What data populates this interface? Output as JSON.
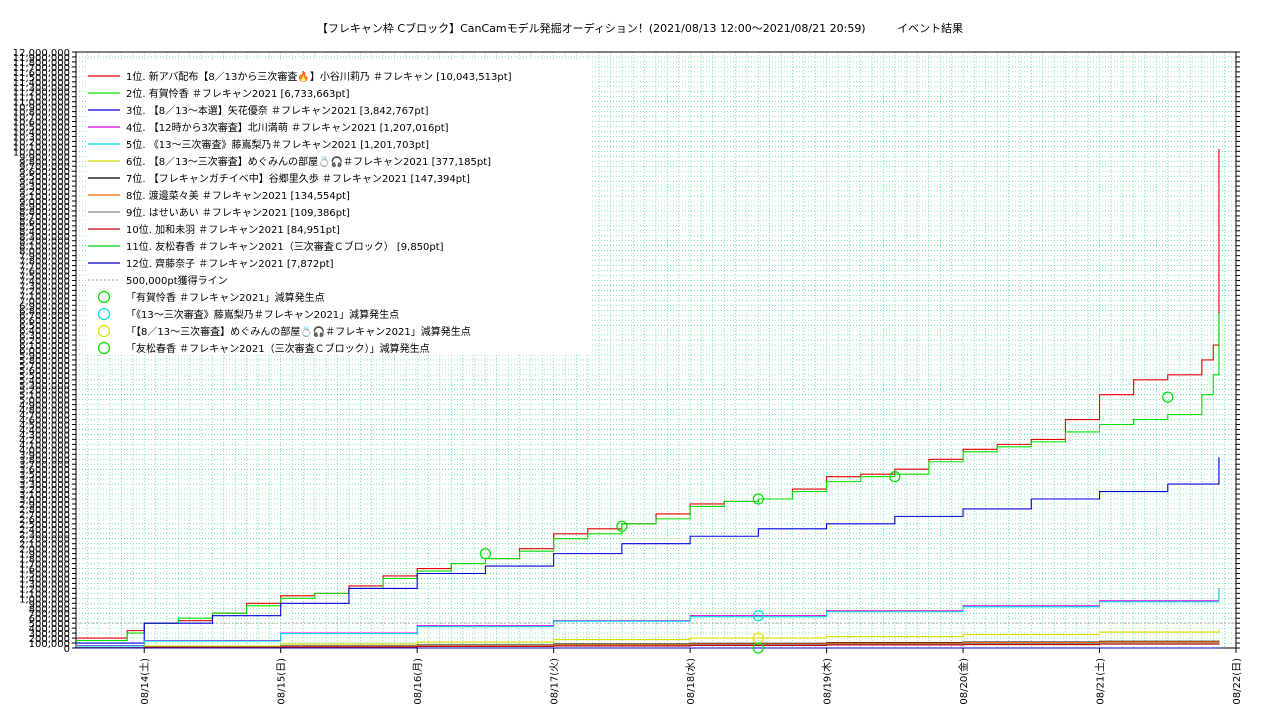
{
  "title": "【フレキャン枠 Cブロック】CanCamモデル発掘オーディション！(2021/08/13 12:00〜2021/08/21 20:59)",
  "title_suffix": "イベント結果",
  "chart_data": {
    "type": "line",
    "title": "【フレキャン枠 Cブロック】CanCamモデル発掘オーディション！(2021/08/13 12:00〜2021/08/21 20:59)　イベント結果",
    "x_ticks": [
      "08/14(土)",
      "08/15(日)",
      "08/16(月)",
      "08/17(火)",
      "08/18(水)",
      "08/19(木)",
      "08/20(金)",
      "08/21(土)",
      "08/22(日)"
    ],
    "xlim": [
      "2021/08/13 12:00",
      "2021/08/22 00:00"
    ],
    "ylim": [
      0,
      12000000
    ],
    "y_ticks_major_step": 1000000,
    "y_ticks_minor_step": 100000,
    "y_tick_labels": [
      "0",
      "100,000",
      "200,000",
      "300,000",
      "400,000",
      "500,000",
      "600,000",
      "700,000",
      "800,000",
      "900,000",
      "1,000,000",
      "2,000,000",
      "3,000,000",
      "4,000,000",
      "5,000,000",
      "6,000,000",
      "7,000,000",
      "8,000,000",
      "9,000,000",
      "10,000,000",
      "11,000,000",
      "12,000,000"
    ],
    "grid": true,
    "grid_color": "#00cc66",
    "legend_position": "top-left",
    "reference_line": {
      "label": "500,000pt獲得ライン",
      "value": 500000,
      "color": "#aaaaaa"
    },
    "series": [
      {
        "name": "1位. 新アバ配布【8／13から三次審査🔥】小谷川莉乃 ＃フレキャン [10,043,513pt]",
        "color": "#dd0000",
        "x": [
          "08/13 12:00",
          "08/13 21:00",
          "08/14 00:00",
          "08/14 06:00",
          "08/14 12:00",
          "08/14 18:00",
          "08/15 00:00",
          "08/15 06:00",
          "08/15 12:00",
          "08/15 18:00",
          "08/16 00:00",
          "08/16 06:00",
          "08/16 12:00",
          "08/16 18:00",
          "08/17 00:00",
          "08/17 06:00",
          "08/17 12:00",
          "08/17 18:00",
          "08/18 00:00",
          "08/18 06:00",
          "08/18 12:00",
          "08/18 18:00",
          "08/19 00:00",
          "08/19 06:00",
          "08/19 12:00",
          "08/19 18:00",
          "08/20 00:00",
          "08/20 06:00",
          "08/20 12:00",
          "08/20 18:00",
          "08/21 00:00",
          "08/21 06:00",
          "08/21 12:00",
          "08/21 18:00",
          "08/21 20:00",
          "08/21 21:00"
        ],
        "y": [
          200000,
          350000,
          500000,
          550000,
          700000,
          900000,
          1050000,
          1100000,
          1250000,
          1450000,
          1600000,
          1700000,
          1800000,
          2000000,
          2300000,
          2400000,
          2500000,
          2700000,
          2900000,
          2950000,
          3000000,
          3200000,
          3450000,
          3500000,
          3600000,
          3800000,
          4000000,
          4100000,
          4200000,
          4600000,
          5100000,
          5400000,
          5500000,
          5800000,
          6100000,
          10043513
        ]
      },
      {
        "name": "2位. 有賀怜香 ＃フレキャン2021 [6,733,663pt]",
        "color": "#00dd00",
        "x": [
          "08/13 12:00",
          "08/13 21:00",
          "08/14 00:00",
          "08/14 06:00",
          "08/14 12:00",
          "08/14 18:00",
          "08/15 00:00",
          "08/15 06:00",
          "08/15 12:00",
          "08/15 18:00",
          "08/16 00:00",
          "08/16 06:00",
          "08/16 12:00",
          "08/16 18:00",
          "08/17 00:00",
          "08/17 06:00",
          "08/17 12:00",
          "08/17 18:00",
          "08/18 00:00",
          "08/18 06:00",
          "08/18 12:00",
          "08/18 18:00",
          "08/19 00:00",
          "08/19 06:00",
          "08/19 12:00",
          "08/19 18:00",
          "08/20 00:00",
          "08/20 06:00",
          "08/20 12:00",
          "08/20 18:00",
          "08/21 00:00",
          "08/21 06:00",
          "08/21 12:00",
          "08/21 18:00",
          "08/21 20:00",
          "08/21 21:00"
        ],
        "y": [
          150000,
          300000,
          500000,
          600000,
          700000,
          850000,
          1000000,
          1100000,
          1200000,
          1400000,
          1550000,
          1700000,
          1800000,
          1950000,
          2200000,
          2300000,
          2500000,
          2600000,
          2850000,
          2950000,
          3000000,
          3150000,
          3350000,
          3450000,
          3500000,
          3750000,
          3950000,
          4050000,
          4150000,
          4350000,
          4500000,
          4600000,
          4700000,
          5100000,
          5500000,
          6733663
        ]
      },
      {
        "name": "3位. 【8／13〜本選】矢花優奈 ＃フレキャン2021 [3,842,767pt]",
        "color": "#0000dd",
        "x": [
          "08/13 12:00",
          "08/14 00:00",
          "08/14 12:00",
          "08/15 00:00",
          "08/15 12:00",
          "08/16 00:00",
          "08/16 12:00",
          "08/17 00:00",
          "08/17 12:00",
          "08/18 00:00",
          "08/18 12:00",
          "08/19 00:00",
          "08/19 12:00",
          "08/20 00:00",
          "08/20 12:00",
          "08/21 00:00",
          "08/21 12:00",
          "08/21 21:00"
        ],
        "y": [
          100000,
          500000,
          650000,
          900000,
          1200000,
          1500000,
          1650000,
          1900000,
          2100000,
          2250000,
          2400000,
          2500000,
          2650000,
          2800000,
          3000000,
          3150000,
          3300000,
          3842767
        ]
      },
      {
        "name": "4位. 【12時から3次審査】北川満萌 ＃フレキャン2021 [1,207,016pt]",
        "color": "#dd00dd",
        "x": [
          "08/13 12:00",
          "08/14 00:00",
          "08/15 00:00",
          "08/16 00:00",
          "08/17 00:00",
          "08/18 00:00",
          "08/19 00:00",
          "08/20 00:00",
          "08/21 00:00",
          "08/21 21:00"
        ],
        "y": [
          50000,
          150000,
          300000,
          450000,
          550000,
          650000,
          750000,
          850000,
          950000,
          1207016
        ]
      },
      {
        "name": "5位. 《13〜三次審査》藤嶌梨乃＃フレキャン2021 [1,201,703pt]",
        "color": "#00dddd",
        "x": [
          "08/13 12:00",
          "08/14 00:00",
          "08/15 00:00",
          "08/16 00:00",
          "08/17 00:00",
          "08/18 00:00",
          "08/19 00:00",
          "08/20 00:00",
          "08/21 00:00",
          "08/21 21:00"
        ],
        "y": [
          40000,
          140000,
          290000,
          430000,
          540000,
          630000,
          730000,
          830000,
          930000,
          1201703
        ]
      },
      {
        "name": "6位. 【8／13〜三次審査】めぐみんの部屋💍🎧＃フレキャン2021 [377,185pt]",
        "color": "#dddd00",
        "x": [
          "08/13 12:00",
          "08/14 00:00",
          "08/15 00:00",
          "08/16 00:00",
          "08/17 00:00",
          "08/18 00:00",
          "08/19 00:00",
          "08/20 00:00",
          "08/21 00:00",
          "08/21 21:00"
        ],
        "y": [
          10000,
          40000,
          80000,
          120000,
          170000,
          200000,
          230000,
          270000,
          320000,
          377185
        ]
      },
      {
        "name": "7位. 【フレキャンガチイベ中】谷郷里久歩 ＃フレキャン2021 [147,394pt]",
        "color": "#000000",
        "x": [
          "08/13 12:00",
          "08/14 00:00",
          "08/15 00:00",
          "08/16 00:00",
          "08/17 00:00",
          "08/18 00:00",
          "08/19 00:00",
          "08/20 00:00",
          "08/21 00:00",
          "08/21 21:00"
        ],
        "y": [
          5000,
          20000,
          40000,
          60000,
          80000,
          95000,
          110000,
          120000,
          135000,
          147394
        ]
      },
      {
        "name": "8位. 渡邊菜々美 ＃フレキャン2021 [134,554pt]",
        "color": "#ee6600",
        "x": [
          "08/13 12:00",
          "08/14 00:00",
          "08/15 00:00",
          "08/16 00:00",
          "08/17 00:00",
          "08/18 00:00",
          "08/19 00:00",
          "08/20 00:00",
          "08/21 00:00",
          "08/21 21:00"
        ],
        "y": [
          5000,
          15000,
          30000,
          50000,
          70000,
          85000,
          100000,
          110000,
          125000,
          134554
        ]
      },
      {
        "name": "9位. はせいあい ＃フレキャン2021 [109,386pt]",
        "color": "#888888",
        "x": [
          "08/13 12:00",
          "08/14 00:00",
          "08/15 00:00",
          "08/16 00:00",
          "08/17 00:00",
          "08/18 00:00",
          "08/19 00:00",
          "08/20 00:00",
          "08/21 00:00",
          "08/21 21:00"
        ],
        "y": [
          3000,
          10000,
          25000,
          40000,
          55000,
          70000,
          80000,
          90000,
          100000,
          109386
        ]
      },
      {
        "name": "10位. 加和未羽 ＃フレキャン2021 [84,951pt]",
        "color": "#cc0000",
        "x": [
          "08/13 12:00",
          "08/14 00:00",
          "08/15 00:00",
          "08/16 00:00",
          "08/17 00:00",
          "08/18 00:00",
          "08/19 00:00",
          "08/20 00:00",
          "08/21 00:00",
          "08/21 21:00"
        ],
        "y": [
          2000,
          8000,
          18000,
          30000,
          42000,
          52000,
          62000,
          70000,
          78000,
          84951
        ]
      },
      {
        "name": "11位. 友松春香 ＃フレキャン2021（三次審査Ｃブロック） [9,850pt]",
        "color": "#00cc00",
        "x": [
          "08/13 12:00",
          "08/21 21:00"
        ],
        "y": [
          0,
          9850
        ]
      },
      {
        "name": "12位. 齊藤奈子 ＃フレキャン2021 [7,872pt]",
        "color": "#0000cc",
        "x": [
          "08/13 12:00",
          "08/21 21:00"
        ],
        "y": [
          0,
          7872
        ]
      }
    ],
    "markers": [
      {
        "name": "「有賀怜香 ＃フレキャン2021」減算発生点",
        "color": "#00dd00",
        "points": [
          [
            "08/16 12:00",
            1900000
          ],
          [
            "08/17 12:00",
            2450000
          ],
          [
            "08/18 12:00",
            3000000
          ],
          [
            "08/19 12:00",
            3450000
          ],
          [
            "08/21 12:00",
            5050000
          ]
        ]
      },
      {
        "name": "「《13〜三次審査》藤嶌梨乃＃フレキャン2021」減算発生点",
        "color": "#00dddd",
        "points": [
          [
            "08/18 12:00",
            650000
          ]
        ]
      },
      {
        "name": "「【8／13〜三次審査】めぐみんの部屋💍🎧＃フレキャン2021」減算発生点",
        "color": "#dddd00",
        "points": [
          [
            "08/18 12:00",
            200000
          ]
        ]
      },
      {
        "name": "「友松春香 ＃フレキャン2021（三次審査Ｃブロック）」減算発生点",
        "color": "#00dd00",
        "points": [
          [
            "08/18 12:00",
            0
          ]
        ]
      }
    ]
  }
}
